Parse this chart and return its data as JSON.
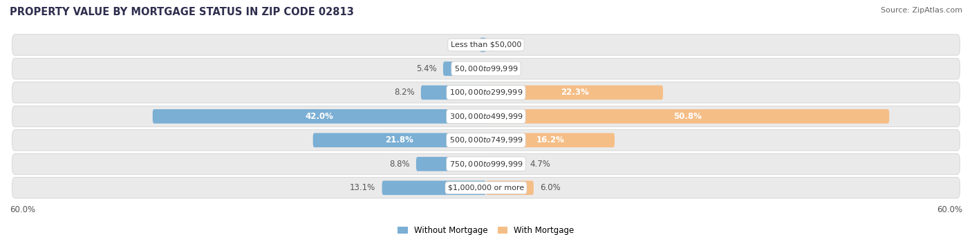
{
  "title": "PROPERTY VALUE BY MORTGAGE STATUS IN ZIP CODE 02813",
  "source": "Source: ZipAtlas.com",
  "categories": [
    "Less than $50,000",
    "$50,000 to $99,999",
    "$100,000 to $299,999",
    "$300,000 to $499,999",
    "$500,000 to $749,999",
    "$750,000 to $999,999",
    "$1,000,000 or more"
  ],
  "without_mortgage": [
    0.79,
    5.4,
    8.2,
    42.0,
    21.8,
    8.8,
    13.1
  ],
  "with_mortgage": [
    0.0,
    0.0,
    22.3,
    50.8,
    16.2,
    4.7,
    6.0
  ],
  "max_val": 60.0,
  "color_without": "#7BAFD4",
  "color_with": "#F5BE87",
  "bg_row_color": "#EAEAEA",
  "bg_row_light": "#F4F4F4",
  "title_fontsize": 10.5,
  "source_fontsize": 8,
  "label_fontsize": 8.5,
  "cat_fontsize": 8,
  "legend_fontsize": 8.5,
  "axis_label_fontsize": 8.5
}
